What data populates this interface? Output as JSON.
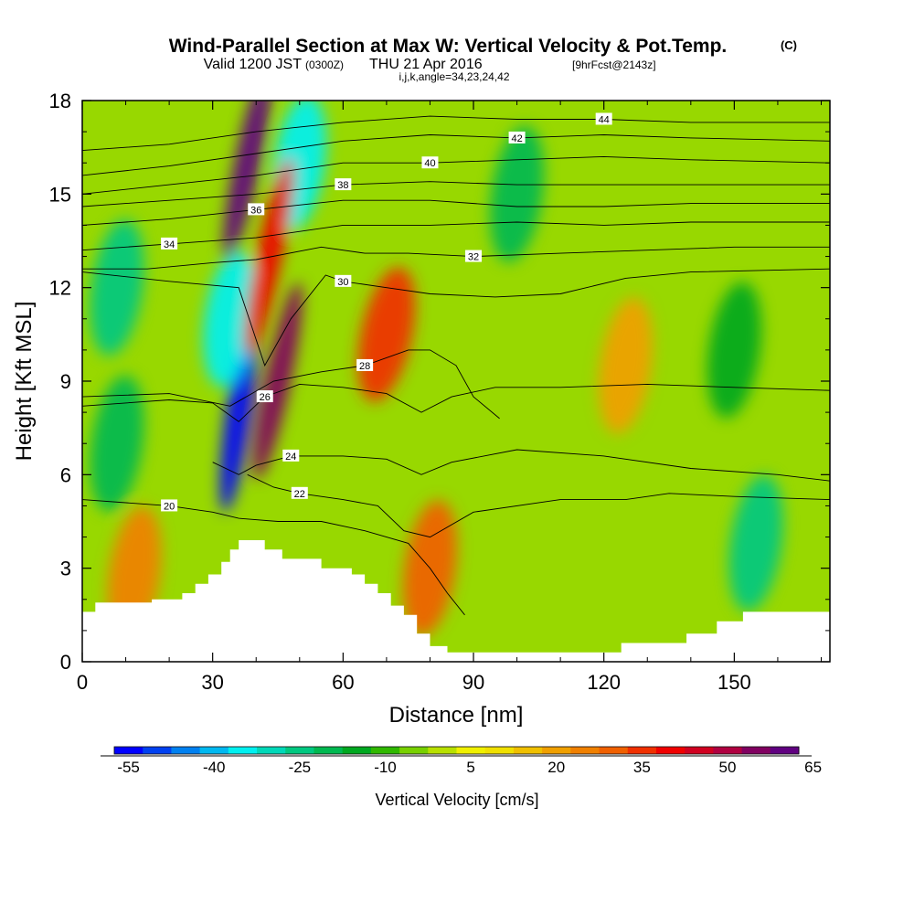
{
  "header": {
    "title": "Wind-Parallel Section at Max W: Vertical Velocity & Pot.Temp.",
    "copyright": "(C)",
    "valid_prefix": "Valid 1200 JST",
    "valid_utc": "(0300Z)",
    "valid_date": "THU 21 Apr 2016",
    "forecast_info": "[9hrFcst@2143z]",
    "indices": "i,j,k,angle=34,23,24,42"
  },
  "chart_data": {
    "type": "heatmap",
    "xlabel": "Distance [nm]",
    "ylabel": "Height [Kft MSL]",
    "xlim": [
      0,
      172
    ],
    "ylim": [
      0,
      18
    ],
    "x_ticks": [
      0,
      30,
      60,
      90,
      120,
      150
    ],
    "y_ticks": [
      0,
      3,
      6,
      9,
      12,
      15,
      18
    ],
    "colorbar": {
      "label": "Vertical Velocity [cm/s]",
      "tick_labels": [
        "-55",
        "-40",
        "-25",
        "-10",
        "5",
        "20",
        "35",
        "50",
        "65"
      ],
      "colors": [
        "#0000ff",
        "#0040f0",
        "#0080f0",
        "#00b8f0",
        "#00f0f0",
        "#00d8b8",
        "#00c880",
        "#00b850",
        "#00a820",
        "#30b800",
        "#78d000",
        "#b8e000",
        "#f0f000",
        "#f0e000",
        "#f0c000",
        "#f0a000",
        "#f08000",
        "#f06000",
        "#f03000",
        "#f00000",
        "#d00020",
        "#b00040",
        "#800060",
        "#600080"
      ]
    },
    "series": [
      {
        "name": "Vertical Velocity [cm/s]",
        "features": [
          {
            "x": 36,
            "y": 8.0,
            "value": -55
          },
          {
            "x": 34,
            "y": 11.0,
            "value": -35
          },
          {
            "x": 50,
            "y": 16.0,
            "value": -35
          },
          {
            "x": 8,
            "y": 12.0,
            "value": -25
          },
          {
            "x": 8,
            "y": 7.0,
            "value": -20
          },
          {
            "x": 38,
            "y": 16.0,
            "value": 65
          },
          {
            "x": 45,
            "y": 9.0,
            "value": 55
          },
          {
            "x": 43,
            "y": 13.0,
            "value": 40
          },
          {
            "x": 70,
            "y": 10.5,
            "value": 35
          },
          {
            "x": 80,
            "y": 3.0,
            "value": 30
          },
          {
            "x": 12,
            "y": 2.8,
            "value": 25
          },
          {
            "x": 100,
            "y": 15.0,
            "value": -20
          },
          {
            "x": 150,
            "y": 10.0,
            "value": -15
          },
          {
            "x": 155,
            "y": 3.8,
            "value": -25
          },
          {
            "x": 125,
            "y": 9.5,
            "value": 20
          }
        ]
      },
      {
        "name": "Potential Temperature",
        "contours": [
          {
            "label": "20",
            "points": [
              [
                0,
                5.2
              ],
              [
                20,
                5.0
              ],
              [
                30,
                4.8
              ],
              [
                36,
                4.6
              ],
              [
                45,
                4.5
              ],
              [
                55,
                4.5
              ],
              [
                65,
                4.2
              ],
              [
                75,
                3.8
              ],
              [
                80,
                3.0
              ],
              [
                84,
                2.2
              ],
              [
                88,
                1.5
              ]
            ]
          },
          {
            "label": "22",
            "points": [
              [
                38,
                6.0
              ],
              [
                44,
                5.6
              ],
              [
                50,
                5.4
              ],
              [
                60,
                5.2
              ],
              [
                68,
                5.0
              ],
              [
                74,
                4.2
              ],
              [
                80,
                4.0
              ],
              [
                90,
                4.8
              ],
              [
                110,
                5.2
              ],
              [
                125,
                5.2
              ],
              [
                135,
                5.4
              ],
              [
                150,
                5.3
              ],
              [
                172,
                5.2
              ]
            ]
          },
          {
            "label": "24",
            "points": [
              [
                30,
                6.4
              ],
              [
                36,
                6.0
              ],
              [
                40,
                6.3
              ],
              [
                48,
                6.6
              ],
              [
                60,
                6.6
              ],
              [
                70,
                6.5
              ],
              [
                78,
                6.0
              ],
              [
                85,
                6.4
              ],
              [
                100,
                6.8
              ],
              [
                120,
                6.6
              ],
              [
                140,
                6.2
              ],
              [
                160,
                6.0
              ],
              [
                172,
                5.8
              ]
            ]
          },
          {
            "label": "26",
            "points": [
              [
                0,
                8.2
              ],
              [
                20,
                8.4
              ],
              [
                30,
                8.3
              ],
              [
                36,
                7.7
              ],
              [
                42,
                8.5
              ],
              [
                50,
                8.9
              ],
              [
                60,
                8.8
              ],
              [
                70,
                8.6
              ],
              [
                78,
                8.0
              ],
              [
                85,
                8.5
              ],
              [
                95,
                8.8
              ],
              [
                110,
                8.8
              ],
              [
                130,
                8.9
              ],
              [
                150,
                8.8
              ],
              [
                172,
                8.7
              ]
            ]
          },
          {
            "label": "28",
            "points": [
              [
                0,
                8.5
              ],
              [
                20,
                8.6
              ],
              [
                34,
                8.2
              ],
              [
                44,
                9.0
              ],
              [
                55,
                9.3
              ],
              [
                65,
                9.5
              ],
              [
                75,
                10.0
              ],
              [
                80,
                10.0
              ],
              [
                86,
                9.5
              ],
              [
                90,
                8.5
              ],
              [
                96,
                7.8
              ]
            ]
          },
          {
            "label": "30",
            "points": [
              [
                0,
                12.5
              ],
              [
                20,
                12.2
              ],
              [
                36,
                12.0
              ],
              [
                42,
                9.5
              ],
              [
                48,
                11.0
              ],
              [
                56,
                12.4
              ],
              [
                60,
                12.2
              ],
              [
                70,
                12.0
              ],
              [
                80,
                11.8
              ],
              [
                95,
                11.7
              ],
              [
                110,
                11.8
              ],
              [
                125,
                12.3
              ],
              [
                140,
                12.5
              ],
              [
                172,
                12.6
              ]
            ]
          },
          {
            "label": "32",
            "points": [
              [
                0,
                12.6
              ],
              [
                15,
                12.6
              ],
              [
                30,
                12.8
              ],
              [
                40,
                12.9
              ],
              [
                55,
                13.3
              ],
              [
                65,
                13.1
              ],
              [
                75,
                13.1
              ],
              [
                90,
                13.0
              ],
              [
                110,
                13.1
              ],
              [
                130,
                13.2
              ],
              [
                150,
                13.3
              ],
              [
                172,
                13.3
              ]
            ]
          },
          {
            "label": "34",
            "points": [
              [
                0,
                13.2
              ],
              [
                20,
                13.4
              ],
              [
                40,
                13.6
              ],
              [
                60,
                14.0
              ],
              [
                80,
                14.0
              ],
              [
                100,
                14.1
              ],
              [
                120,
                14.0
              ],
              [
                140,
                14.1
              ],
              [
                172,
                14.1
              ]
            ]
          },
          {
            "label": "36",
            "points": [
              [
                0,
                14.0
              ],
              [
                20,
                14.2
              ],
              [
                40,
                14.5
              ],
              [
                60,
                14.8
              ],
              [
                80,
                14.8
              ],
              [
                100,
                14.6
              ],
              [
                120,
                14.6
              ],
              [
                140,
                14.7
              ],
              [
                172,
                14.7
              ]
            ]
          },
          {
            "label": "38",
            "points": [
              [
                0,
                14.6
              ],
              [
                20,
                14.8
              ],
              [
                40,
                15.0
              ],
              [
                60,
                15.3
              ],
              [
                80,
                15.4
              ],
              [
                100,
                15.3
              ],
              [
                120,
                15.3
              ],
              [
                140,
                15.3
              ],
              [
                172,
                15.3
              ]
            ]
          },
          {
            "label": "40",
            "points": [
              [
                0,
                15.0
              ],
              [
                20,
                15.3
              ],
              [
                40,
                15.6
              ],
              [
                60,
                16.0
              ],
              [
                80,
                16.0
              ],
              [
                100,
                16.1
              ],
              [
                120,
                16.2
              ],
              [
                140,
                16.1
              ],
              [
                172,
                16.0
              ]
            ]
          },
          {
            "label": "42",
            "points": [
              [
                0,
                15.6
              ],
              [
                20,
                15.9
              ],
              [
                40,
                16.3
              ],
              [
                60,
                16.7
              ],
              [
                80,
                16.9
              ],
              [
                100,
                16.8
              ],
              [
                120,
                16.9
              ],
              [
                140,
                16.8
              ],
              [
                172,
                16.7
              ]
            ]
          },
          {
            "label": "44",
            "points": [
              [
                0,
                16.4
              ],
              [
                20,
                16.6
              ],
              [
                40,
                17.0
              ],
              [
                60,
                17.3
              ],
              [
                80,
                17.5
              ],
              [
                100,
                17.4
              ],
              [
                120,
                17.4
              ],
              [
                140,
                17.3
              ],
              [
                172,
                17.3
              ]
            ]
          }
        ]
      }
    ],
    "terrain_kft": [
      [
        0,
        1.6
      ],
      [
        3,
        1.6
      ],
      [
        3,
        1.9
      ],
      [
        16,
        1.9
      ],
      [
        16,
        2.0
      ],
      [
        23,
        2.0
      ],
      [
        23,
        2.2
      ],
      [
        26,
        2.2
      ],
      [
        26,
        2.5
      ],
      [
        29,
        2.5
      ],
      [
        29,
        2.8
      ],
      [
        32,
        2.8
      ],
      [
        32,
        3.2
      ],
      [
        34,
        3.2
      ],
      [
        34,
        3.6
      ],
      [
        36,
        3.6
      ],
      [
        36,
        3.9
      ],
      [
        42,
        3.9
      ],
      [
        42,
        3.6
      ],
      [
        46,
        3.6
      ],
      [
        46,
        3.3
      ],
      [
        55,
        3.3
      ],
      [
        55,
        3.0
      ],
      [
        62,
        3.0
      ],
      [
        62,
        2.8
      ],
      [
        65,
        2.8
      ],
      [
        65,
        2.5
      ],
      [
        68,
        2.5
      ],
      [
        68,
        2.2
      ],
      [
        71,
        2.2
      ],
      [
        71,
        1.8
      ],
      [
        74,
        1.8
      ],
      [
        74,
        1.5
      ],
      [
        77,
        1.5
      ],
      [
        77,
        0.9
      ],
      [
        80,
        0.9
      ],
      [
        80,
        0.5
      ],
      [
        84,
        0.5
      ],
      [
        84,
        0.3
      ],
      [
        124,
        0.3
      ],
      [
        124,
        0.6
      ],
      [
        139,
        0.6
      ],
      [
        139,
        0.9
      ],
      [
        146,
        0.9
      ],
      [
        146,
        1.3
      ],
      [
        152,
        1.3
      ],
      [
        152,
        1.6
      ],
      [
        172,
        1.6
      ]
    ]
  }
}
